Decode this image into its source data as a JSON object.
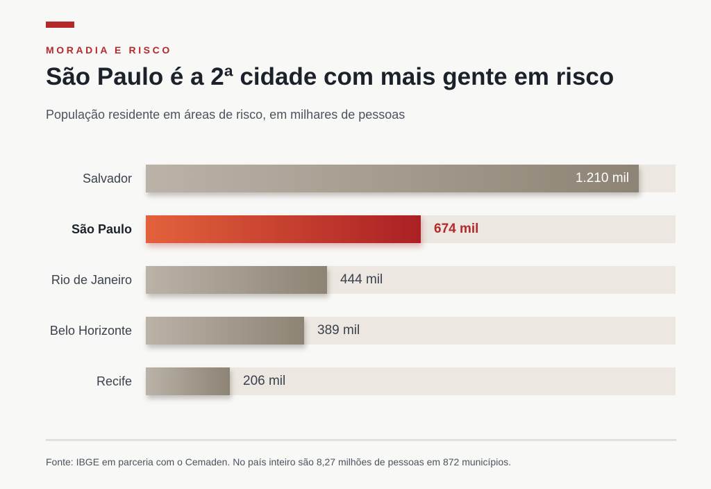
{
  "kicker": "MORADIA E RISCO",
  "title": "São Paulo é a 2ª cidade com mais gente em risco",
  "subtitle": "População residente em áreas de risco, em milhares de pessoas",
  "footnote": "Fonte: IBGE em parceria com o Cemaden. No país inteiro são 8,27 milhões de pessoas em 872 municípios.",
  "colors": {
    "accent": "#b5292b",
    "bar_neutral_start": "#bbb3a8",
    "bar_neutral_end": "#8d8475",
    "bar_highlight_start": "#e3623c",
    "bar_highlight_end": "#ab2024",
    "track": "#ece7e1"
  },
  "chart_data": {
    "type": "bar",
    "orientation": "horizontal",
    "categories": [
      "Salvador",
      "São Paulo",
      "Rio de Janeiro",
      "Belo Horizonte",
      "Recife"
    ],
    "values": [
      1210,
      674,
      444,
      389,
      206
    ],
    "value_labels": [
      "1.210 mil",
      "674 mil",
      "444 mil",
      "389 mil",
      "206 mil"
    ],
    "highlight": "São Paulo",
    "xlim": [
      0,
      1300
    ],
    "grid": false,
    "legend": "none"
  }
}
